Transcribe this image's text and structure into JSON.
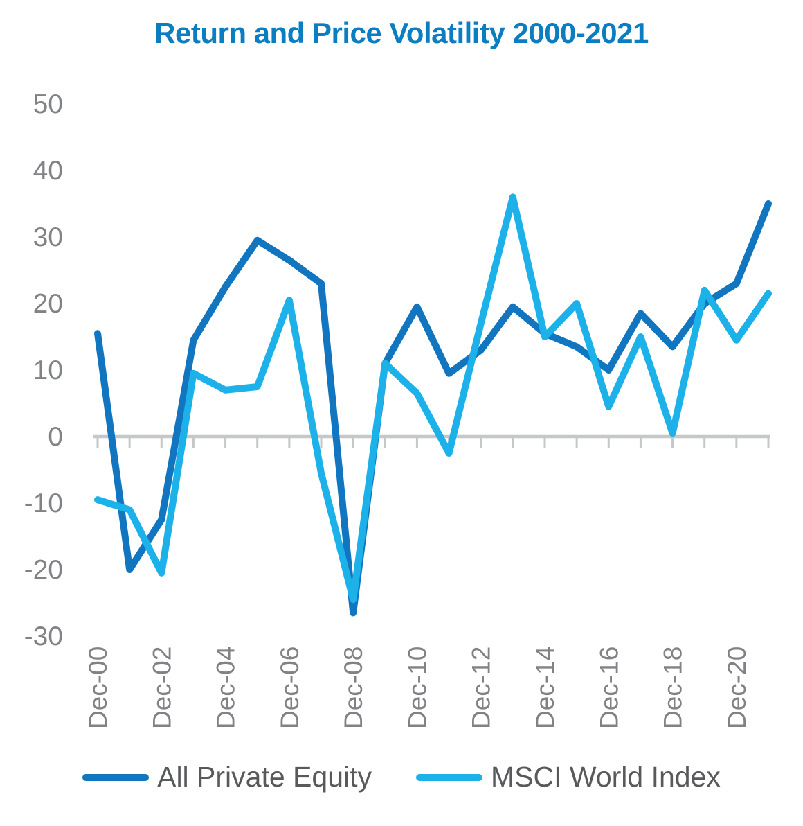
{
  "page": {
    "background": "#ffffff"
  },
  "chart_data": {
    "type": "line",
    "title": "Return and Price Volatility 2000-2021",
    "title_color": "#0b7dc1",
    "categories": [
      "Dec-00",
      "Dec-01",
      "Dec-02",
      "Dec-03",
      "Dec-04",
      "Dec-05",
      "Dec-06",
      "Dec-07",
      "Dec-08",
      "Dec-09",
      "Dec-10",
      "Dec-11",
      "Dec-12",
      "Dec-13",
      "Dec-14",
      "Dec-15",
      "Dec-16",
      "Dec-17",
      "Dec-18",
      "Dec-19",
      "Dec-20",
      "Dec-21"
    ],
    "x_labels_every": 2,
    "x_labels_shown": [
      "Dec-00",
      "Dec-02",
      "Dec-04",
      "Dec-06",
      "Dec-08",
      "Dec-10",
      "Dec-12",
      "Dec-14",
      "Dec-16",
      "Dec-18",
      "Dec-20"
    ],
    "ylim": [
      -30,
      50
    ],
    "y_ticks": [
      50,
      40,
      30,
      20,
      10,
      0,
      -10,
      -20,
      -30
    ],
    "grid": false,
    "axis_color": "#c6c7c8",
    "tick_label_color": "#808285",
    "legend_position": "bottom",
    "line_width": 10,
    "series": [
      {
        "name": "All Private Equity",
        "color": "#1176bf",
        "values": [
          15.5,
          -20,
          -12.5,
          14.5,
          22.5,
          29.5,
          26.5,
          23,
          -26.5,
          11,
          19.5,
          9.5,
          13,
          19.5,
          15.5,
          13.5,
          10,
          18.5,
          13.5,
          20,
          23,
          35
        ]
      },
      {
        "name": "MSCI World Index",
        "color": "#1cb2e9",
        "values": [
          -9.5,
          -11,
          -20.5,
          9.5,
          7,
          7.5,
          20.5,
          -5.5,
          -24.5,
          11,
          6.5,
          -2.5,
          17,
          36,
          15,
          20,
          4.5,
          15,
          0.5,
          22,
          14.5,
          21.5
        ]
      }
    ]
  }
}
